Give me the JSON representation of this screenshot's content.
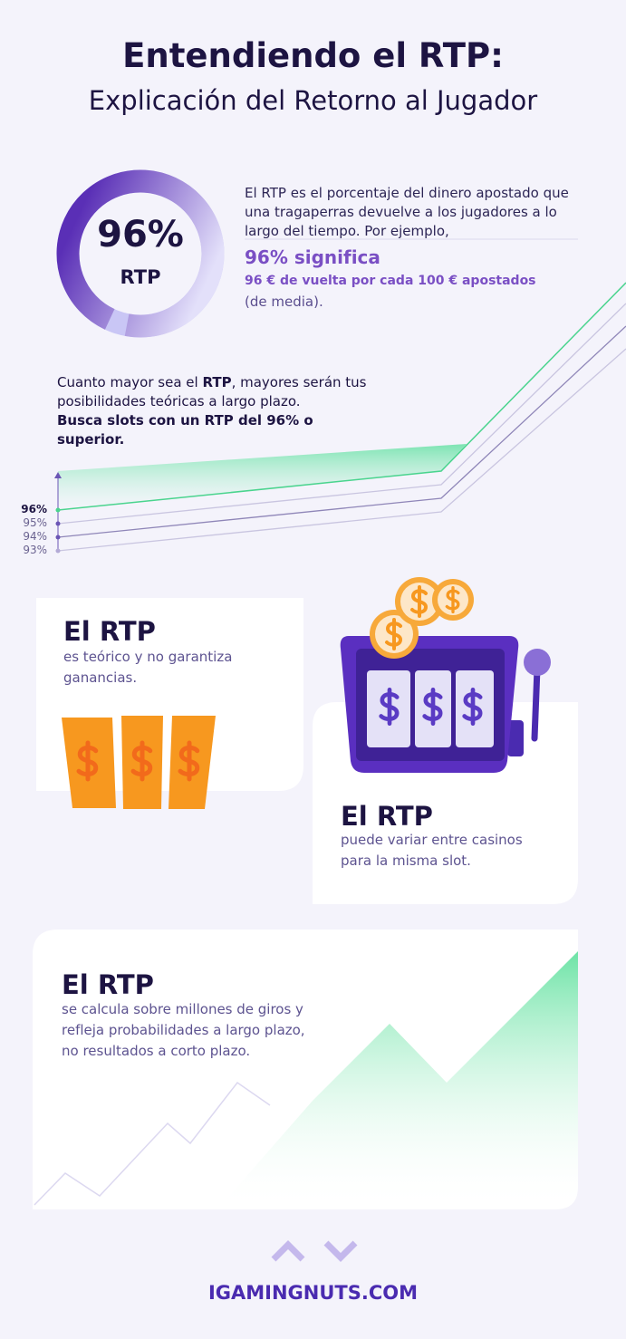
{
  "header": {
    "title": "Entendiendo el RTP:",
    "subtitle": "Explicación del Retorno al Jugador"
  },
  "donut": {
    "value": 96,
    "label": "96%",
    "caption": "RTP"
  },
  "intro": {
    "text": "El RTP es el porcentaje del dinero apostado que una tragaperras devuelve a los jugadores a lo largo del tiempo. Por ejemplo,",
    "highlight": "96% significa",
    "detail": "96 € de vuelta por cada 100 € apostados",
    "note": "(de media)."
  },
  "tip": {
    "parts": [
      "Cuanto mayor sea el ",
      "RTP",
      ", mayores serán tus posibilidades teóricas a largo plazo."
    ],
    "emphasis": "Busca slots con un RTP del 96% o superior."
  },
  "levels": [
    "96%",
    "95%",
    "94%",
    "93%"
  ],
  "cards": [
    {
      "title": "El RTP",
      "text": "es teórico y no garantiza ganancias."
    },
    {
      "title": "El RTP",
      "text": "puede variar entre casinos para la misma slot."
    },
    {
      "title": "El RTP",
      "text": "se calcula sobre millones de giros y refleja probabilidades a largo plazo, no resultados a corto plazo."
    }
  ],
  "footer": {
    "brand": "IGAMINGNUTS.COM"
  }
}
